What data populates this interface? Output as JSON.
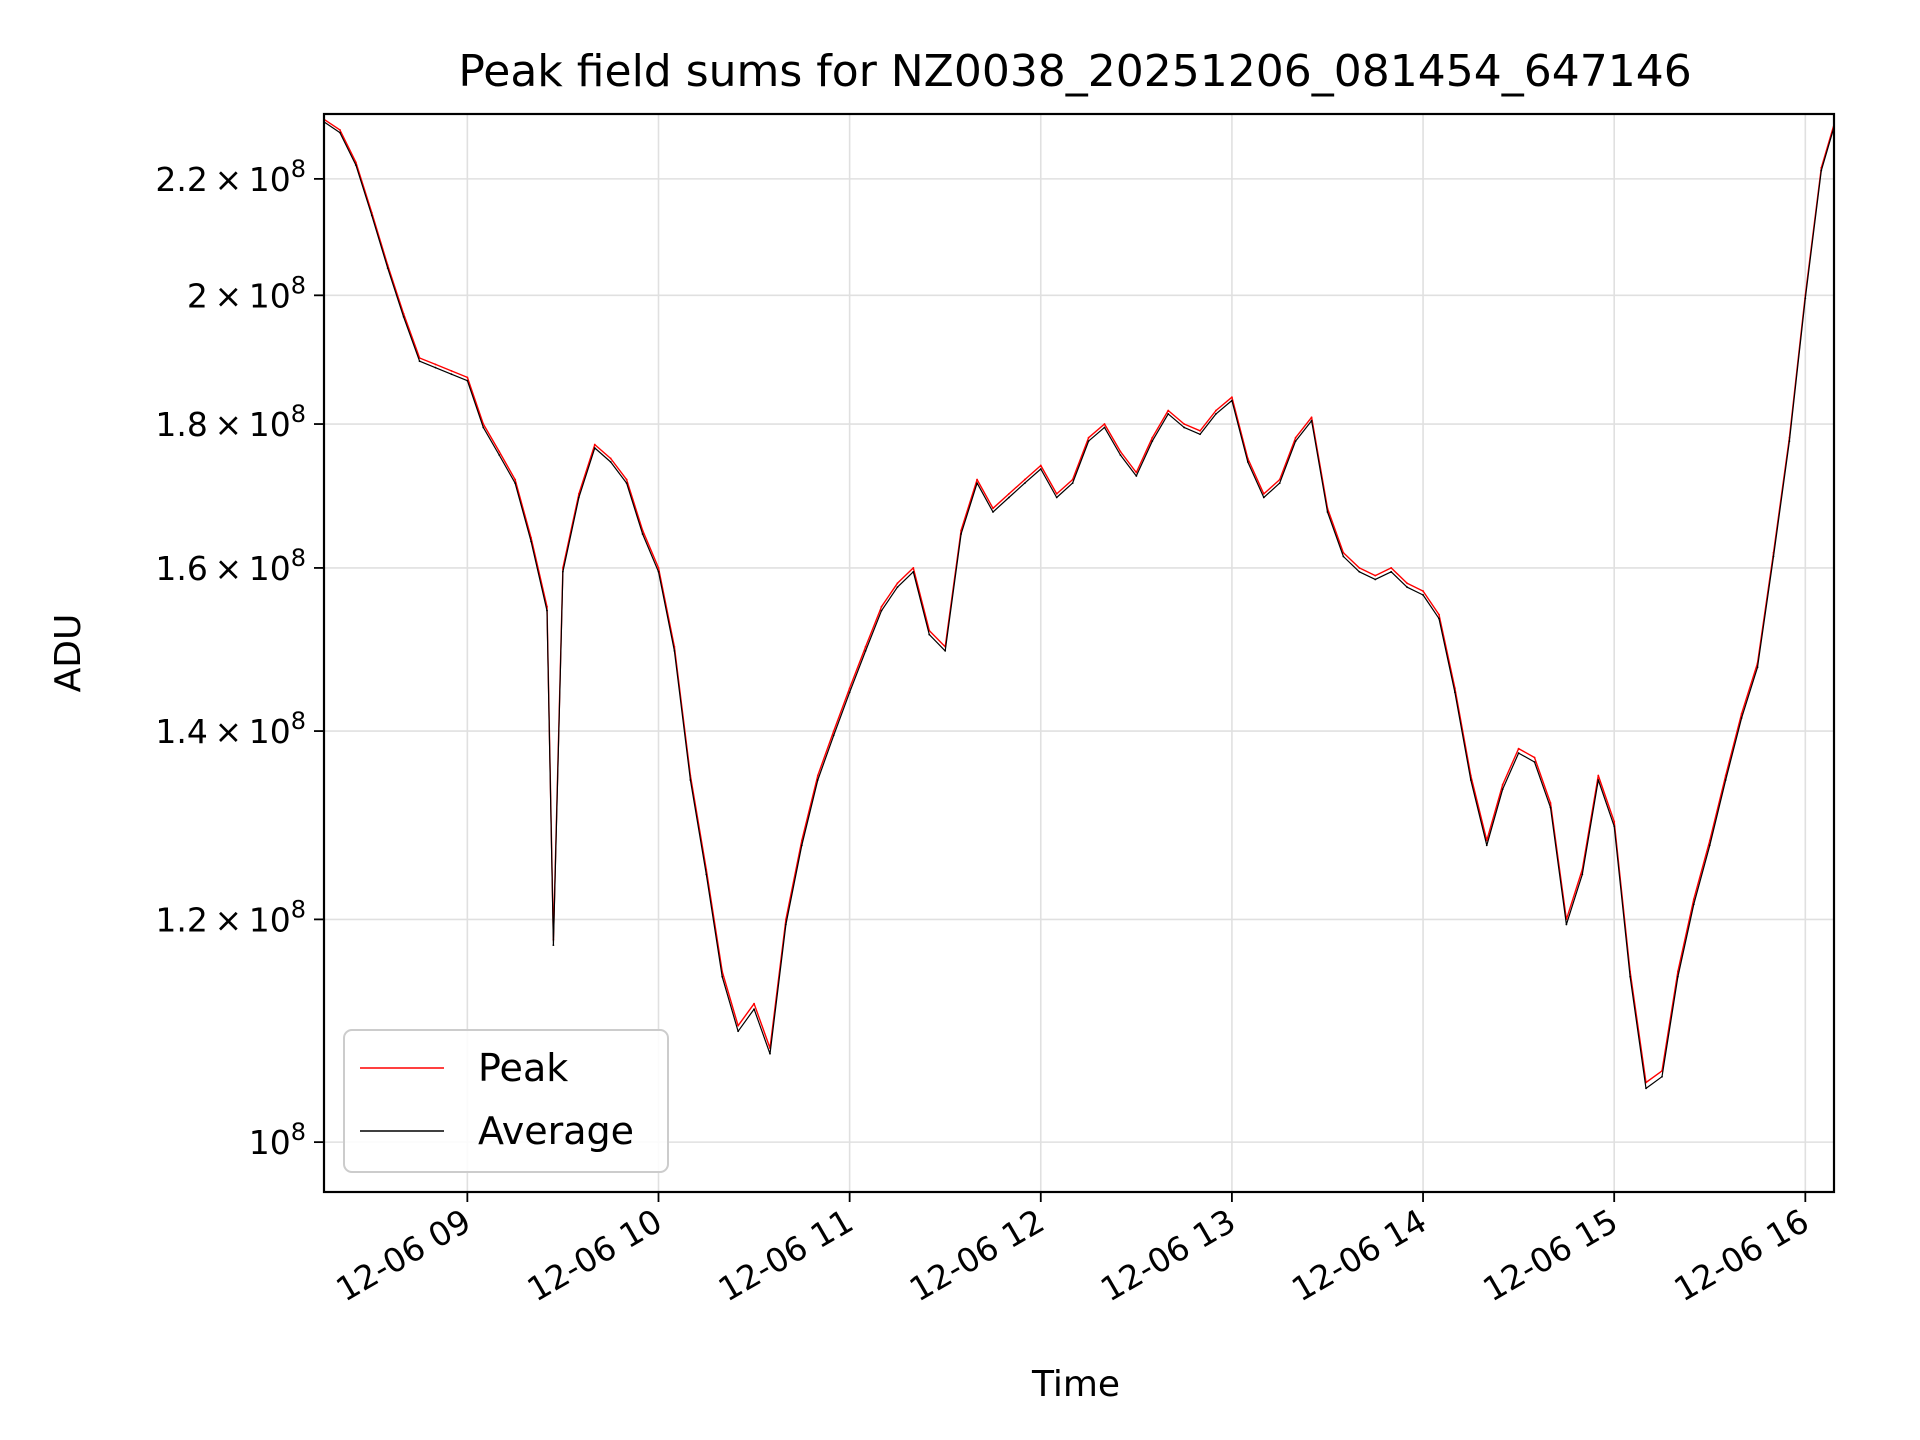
{
  "chart_data": {
    "type": "line",
    "title": "Peak field sums for NZ0038_20251206_081454_647146",
    "xlabel": "Time",
    "ylabel": "ADU",
    "y_scale": "log",
    "ylim": [
      96000000,
      232000000
    ],
    "xlim": [
      "2025-12-06 08:15",
      "2025-12-06 16:09"
    ],
    "x_ticks": [
      "2025-12-06 09:00",
      "2025-12-06 10:00",
      "2025-12-06 11:00",
      "2025-12-06 12:00",
      "2025-12-06 13:00",
      "2025-12-06 14:00",
      "2025-12-06 15:00",
      "2025-12-06 16:00"
    ],
    "x_tick_labels": [
      "12-06 09",
      "12-06 10",
      "12-06 11",
      "12-06 12",
      "12-06 13",
      "12-06 14",
      "12-06 15",
      "12-06 16"
    ],
    "y_ticks": [
      {
        "value": 100000000,
        "mantissa": "",
        "exp": "8"
      },
      {
        "value": 120000000,
        "mantissa": "1.2",
        "exp": "8"
      },
      {
        "value": 140000000,
        "mantissa": "1.4",
        "exp": "8"
      },
      {
        "value": 160000000,
        "mantissa": "1.6",
        "exp": "8"
      },
      {
        "value": 180000000,
        "mantissa": "1.8",
        "exp": "8"
      },
      {
        "value": 200000000,
        "mantissa": "2",
        "exp": "8"
      },
      {
        "value": 220000000,
        "mantissa": "2.2",
        "exp": "8"
      }
    ],
    "grid": true,
    "legend_position": "lower-left",
    "series": [
      {
        "name": "Peak",
        "color": "#ff0000",
        "x": [
          "2025-12-06 08:15",
          "2025-12-06 08:20",
          "2025-12-06 08:25",
          "2025-12-06 08:30",
          "2025-12-06 08:35",
          "2025-12-06 08:40",
          "2025-12-06 08:45",
          "2025-12-06 08:50",
          "2025-12-06 08:55",
          "2025-12-06 09:00",
          "2025-12-06 09:05",
          "2025-12-06 09:10",
          "2025-12-06 09:15",
          "2025-12-06 09:20",
          "2025-12-06 09:25",
          "2025-12-06 09:27",
          "2025-12-06 09:30",
          "2025-12-06 09:35",
          "2025-12-06 09:40",
          "2025-12-06 09:45",
          "2025-12-06 09:50",
          "2025-12-06 09:55",
          "2025-12-06 10:00",
          "2025-12-06 10:05",
          "2025-12-06 10:10",
          "2025-12-06 10:15",
          "2025-12-06 10:20",
          "2025-12-06 10:25",
          "2025-12-06 10:30",
          "2025-12-06 10:35",
          "2025-12-06 10:40",
          "2025-12-06 10:45",
          "2025-12-06 10:50",
          "2025-12-06 10:55",
          "2025-12-06 11:00",
          "2025-12-06 11:05",
          "2025-12-06 11:10",
          "2025-12-06 11:15",
          "2025-12-06 11:20",
          "2025-12-06 11:25",
          "2025-12-06 11:30",
          "2025-12-06 11:35",
          "2025-12-06 11:40",
          "2025-12-06 11:45",
          "2025-12-06 11:50",
          "2025-12-06 11:55",
          "2025-12-06 12:00",
          "2025-12-06 12:05",
          "2025-12-06 12:10",
          "2025-12-06 12:15",
          "2025-12-06 12:20",
          "2025-12-06 12:25",
          "2025-12-06 12:30",
          "2025-12-06 12:35",
          "2025-12-06 12:40",
          "2025-12-06 12:45",
          "2025-12-06 12:50",
          "2025-12-06 12:55",
          "2025-12-06 13:00",
          "2025-12-06 13:05",
          "2025-12-06 13:10",
          "2025-12-06 13:15",
          "2025-12-06 13:20",
          "2025-12-06 13:25",
          "2025-12-06 13:30",
          "2025-12-06 13:35",
          "2025-12-06 13:40",
          "2025-12-06 13:45",
          "2025-12-06 13:50",
          "2025-12-06 13:55",
          "2025-12-06 14:00",
          "2025-12-06 14:05",
          "2025-12-06 14:10",
          "2025-12-06 14:15",
          "2025-12-06 14:20",
          "2025-12-06 14:25",
          "2025-12-06 14:30",
          "2025-12-06 14:35",
          "2025-12-06 14:40",
          "2025-12-06 14:45",
          "2025-12-06 14:50",
          "2025-12-06 14:55",
          "2025-12-06 15:00",
          "2025-12-06 15:05",
          "2025-12-06 15:10",
          "2025-12-06 15:15",
          "2025-12-06 15:20",
          "2025-12-06 15:25",
          "2025-12-06 15:30",
          "2025-12-06 15:35",
          "2025-12-06 15:40",
          "2025-12-06 15:45",
          "2025-12-06 15:50",
          "2025-12-06 15:55",
          "2025-12-06 16:00",
          "2025-12-06 16:05",
          "2025-12-06 16:09"
        ],
        "values": [
          231000000,
          229000000,
          223000000,
          214000000,
          205000000,
          197000000,
          190000000,
          189000000,
          188000000,
          187000000,
          180000000,
          176000000,
          172000000,
          164000000,
          155000000,
          118000000,
          160000000,
          170000000,
          177000000,
          175000000,
          172000000,
          165000000,
          160000000,
          150000000,
          135000000,
          125000000,
          115000000,
          110000000,
          112000000,
          108000000,
          120000000,
          128000000,
          135000000,
          140000000,
          145000000,
          150000000,
          155000000,
          158000000,
          160000000,
          152000000,
          150000000,
          165000000,
          172000000,
          168000000,
          170000000,
          172000000,
          174000000,
          170000000,
          172000000,
          178000000,
          180000000,
          176000000,
          173000000,
          178000000,
          182000000,
          180000000,
          179000000,
          182000000,
          184000000,
          175000000,
          170000000,
          172000000,
          178000000,
          181000000,
          168000000,
          162000000,
          160000000,
          159000000,
          160000000,
          158000000,
          157000000,
          154000000,
          145000000,
          135000000,
          128000000,
          134000000,
          138000000,
          137000000,
          132000000,
          120000000,
          125000000,
          135000000,
          130000000,
          115000000,
          105000000,
          106000000,
          115000000,
          122000000,
          128000000,
          135000000,
          142000000,
          148000000,
          162000000,
          178000000,
          200000000,
          222000000,
          230000000
        ]
      },
      {
        "name": "Average",
        "color": "#000000",
        "x": [
          "2025-12-06 08:15",
          "2025-12-06 08:20",
          "2025-12-06 08:25",
          "2025-12-06 08:30",
          "2025-12-06 08:35",
          "2025-12-06 08:40",
          "2025-12-06 08:45",
          "2025-12-06 08:50",
          "2025-12-06 08:55",
          "2025-12-06 09:00",
          "2025-12-06 09:05",
          "2025-12-06 09:10",
          "2025-12-06 09:15",
          "2025-12-06 09:20",
          "2025-12-06 09:25",
          "2025-12-06 09:27",
          "2025-12-06 09:30",
          "2025-12-06 09:35",
          "2025-12-06 09:40",
          "2025-12-06 09:45",
          "2025-12-06 09:50",
          "2025-12-06 09:55",
          "2025-12-06 10:00",
          "2025-12-06 10:05",
          "2025-12-06 10:10",
          "2025-12-06 10:15",
          "2025-12-06 10:20",
          "2025-12-06 10:25",
          "2025-12-06 10:30",
          "2025-12-06 10:35",
          "2025-12-06 10:40",
          "2025-12-06 10:45",
          "2025-12-06 10:50",
          "2025-12-06 10:55",
          "2025-12-06 11:00",
          "2025-12-06 11:05",
          "2025-12-06 11:10",
          "2025-12-06 11:15",
          "2025-12-06 11:20",
          "2025-12-06 11:25",
          "2025-12-06 11:30",
          "2025-12-06 11:35",
          "2025-12-06 11:40",
          "2025-12-06 11:45",
          "2025-12-06 11:50",
          "2025-12-06 11:55",
          "2025-12-06 12:00",
          "2025-12-06 12:05",
          "2025-12-06 12:10",
          "2025-12-06 12:15",
          "2025-12-06 12:20",
          "2025-12-06 12:25",
          "2025-12-06 12:30",
          "2025-12-06 12:35",
          "2025-12-06 12:40",
          "2025-12-06 12:45",
          "2025-12-06 12:50",
          "2025-12-06 12:55",
          "2025-12-06 13:00",
          "2025-12-06 13:05",
          "2025-12-06 13:10",
          "2025-12-06 13:15",
          "2025-12-06 13:20",
          "2025-12-06 13:25",
          "2025-12-06 13:30",
          "2025-12-06 13:35",
          "2025-12-06 13:40",
          "2025-12-06 13:45",
          "2025-12-06 13:50",
          "2025-12-06 13:55",
          "2025-12-06 14:00",
          "2025-12-06 14:05",
          "2025-12-06 14:10",
          "2025-12-06 14:15",
          "2025-12-06 14:20",
          "2025-12-06 14:25",
          "2025-12-06 14:30",
          "2025-12-06 14:35",
          "2025-12-06 14:40",
          "2025-12-06 14:45",
          "2025-12-06 14:50",
          "2025-12-06 14:55",
          "2025-12-06 15:00",
          "2025-12-06 15:05",
          "2025-12-06 15:10",
          "2025-12-06 15:15",
          "2025-12-06 15:20",
          "2025-12-06 15:25",
          "2025-12-06 15:30",
          "2025-12-06 15:35",
          "2025-12-06 15:40",
          "2025-12-06 15:45",
          "2025-12-06 15:50",
          "2025-12-06 15:55",
          "2025-12-06 16:00",
          "2025-12-06 16:05",
          "2025-12-06 16:09"
        ],
        "values": [
          230500000,
          228500000,
          222500000,
          213500000,
          204500000,
          196500000,
          189500000,
          188500000,
          187500000,
          186500000,
          179500000,
          175500000,
          171500000,
          163500000,
          154500000,
          117500000,
          159500000,
          169500000,
          176500000,
          174500000,
          171500000,
          164500000,
          159500000,
          149500000,
          134500000,
          124500000,
          114500000,
          109500000,
          111500000,
          107500000,
          119500000,
          127500000,
          134500000,
          139500000,
          144500000,
          149500000,
          154500000,
          157500000,
          159500000,
          151500000,
          149500000,
          164500000,
          171500000,
          167500000,
          169500000,
          171500000,
          173500000,
          169500000,
          171500000,
          177500000,
          179500000,
          175500000,
          172500000,
          177500000,
          181500000,
          179500000,
          178500000,
          181500000,
          183500000,
          174500000,
          169500000,
          171500000,
          177500000,
          180500000,
          167500000,
          161500000,
          159500000,
          158500000,
          159500000,
          157500000,
          156500000,
          153500000,
          144500000,
          134500000,
          127500000,
          133500000,
          137500000,
          136500000,
          131500000,
          119500000,
          124500000,
          134500000,
          129500000,
          114500000,
          104500000,
          105500000,
          114500000,
          121500000,
          127500000,
          134500000,
          141500000,
          147500000,
          161500000,
          177500000,
          199500000,
          221500000,
          229500000
        ]
      }
    ]
  }
}
